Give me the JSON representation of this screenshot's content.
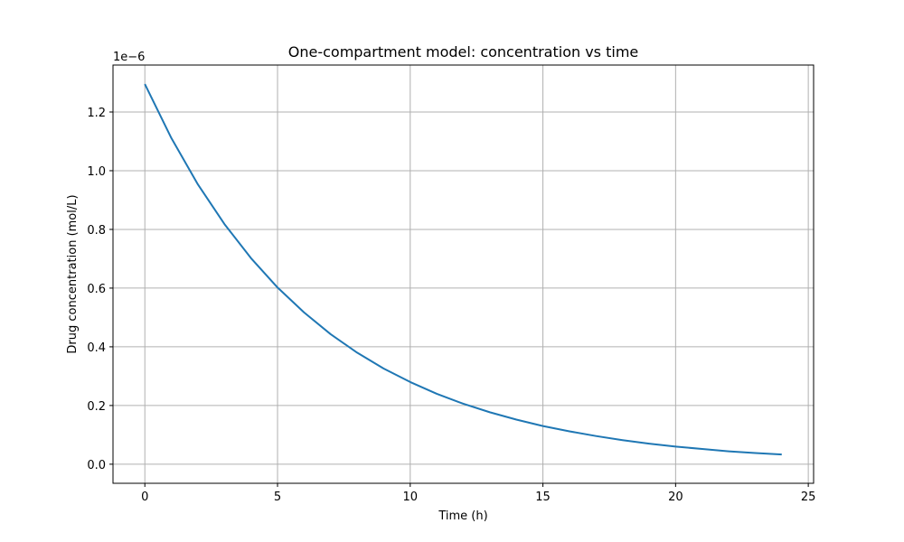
{
  "chart_data": {
    "type": "line",
    "title": "One-compartment model: concentration vs time",
    "xlabel": "Time (h)",
    "ylabel": "Drug concentration (mol/L)",
    "y_offset_label": "1e−6",
    "y_scale_factor": 1e-06,
    "xlim": [
      -1.2,
      25.2
    ],
    "ylim": [
      -0.065,
      1.36
    ],
    "x_ticks": [
      0,
      5,
      10,
      15,
      20,
      25
    ],
    "x_tick_labels": [
      "0",
      "5",
      "10",
      "15",
      "20",
      "25"
    ],
    "y_ticks": [
      0.0,
      0.2,
      0.4,
      0.6,
      0.8,
      1.0,
      1.2
    ],
    "y_tick_labels": [
      "0.0",
      "0.2",
      "0.4",
      "0.6",
      "0.8",
      "1.0",
      "1.2"
    ],
    "grid": true,
    "line_color": "#1f77b4",
    "series": [
      {
        "x": [
          0,
          1,
          2,
          3,
          4,
          5,
          6,
          7,
          8,
          9,
          10,
          11,
          12,
          13,
          14,
          15,
          16,
          17,
          18,
          19,
          20,
          21,
          22,
          23,
          24
        ],
        "values": [
          1.295,
          1.111,
          0.953,
          0.818,
          0.702,
          0.602,
          0.517,
          0.443,
          0.38,
          0.326,
          0.28,
          0.24,
          0.206,
          0.177,
          0.152,
          0.13,
          0.112,
          0.096,
          0.082,
          0.07,
          0.06,
          0.052,
          0.044,
          0.038,
          0.033
        ]
      }
    ]
  }
}
